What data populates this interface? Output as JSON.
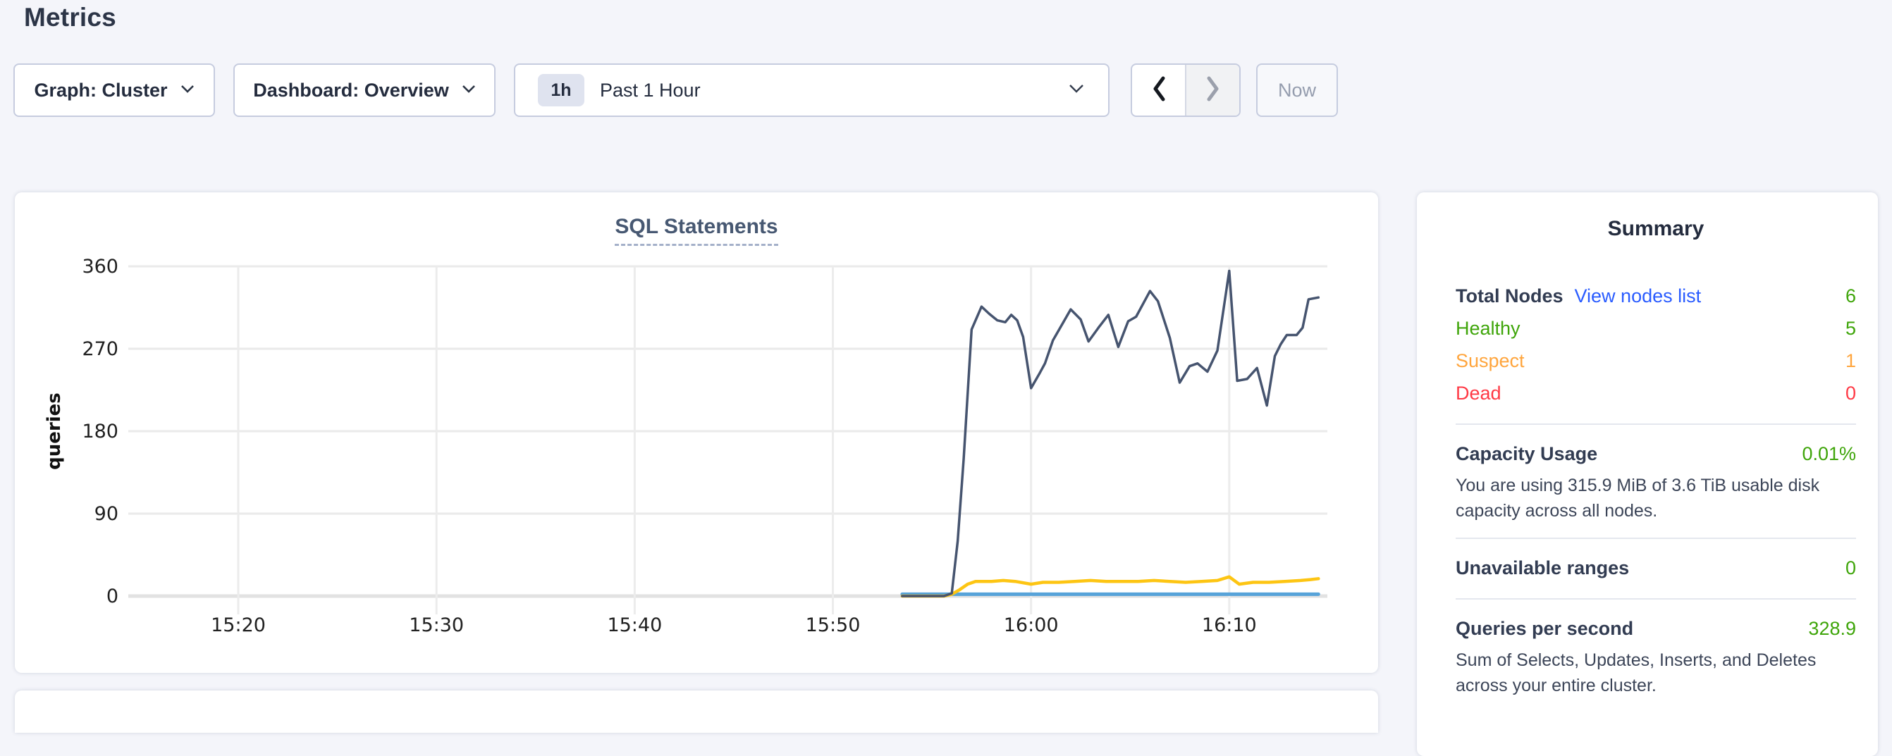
{
  "page": {
    "title": "Metrics"
  },
  "toolbar": {
    "graph_dropdown": {
      "label": "Graph: Cluster"
    },
    "dashboard_dropdown": {
      "label": "Dashboard: Overview"
    },
    "time_picker": {
      "badge": "1h",
      "label": "Past 1 Hour"
    },
    "prev_label": "previous time window",
    "next_label": "next time window",
    "now_button": "Now"
  },
  "chart_data": {
    "type": "line",
    "title": "SQL Statements",
    "ylabel": "queries",
    "xlabel": "",
    "x_unit": "minutes after 15:00",
    "xlim": [
      14.45,
      74.95
    ],
    "ylim": [
      0,
      360
    ],
    "grid": true,
    "legend": "none visible",
    "y_ticks": [
      0,
      90,
      180,
      270,
      360
    ],
    "x_ticks": [
      {
        "t": 20,
        "label": "15:20"
      },
      {
        "t": 30,
        "label": "15:30"
      },
      {
        "t": 40,
        "label": "15:40"
      },
      {
        "t": 50,
        "label": "15:50"
      },
      {
        "t": 60,
        "label": "16:00"
      },
      {
        "t": 70,
        "label": "16:10"
      }
    ],
    "series": [
      {
        "name": "blue",
        "color": "#57a3d9",
        "width": 5,
        "points": [
          [
            53.5,
            2
          ],
          [
            58,
            2
          ],
          [
            62,
            2
          ],
          [
            66,
            2
          ],
          [
            70,
            2
          ],
          [
            74.5,
            2
          ]
        ]
      },
      {
        "name": "yellow",
        "color": "#fdc513",
        "width": 4.5,
        "points": [
          [
            53.5,
            0
          ],
          [
            54.5,
            0
          ],
          [
            55.6,
            0
          ],
          [
            56.0,
            2
          ],
          [
            56.4,
            7
          ],
          [
            56.8,
            13
          ],
          [
            57.2,
            16
          ],
          [
            58.0,
            16
          ],
          [
            58.6,
            17
          ],
          [
            59.2,
            16
          ],
          [
            60.0,
            13
          ],
          [
            60.6,
            15
          ],
          [
            61.4,
            15
          ],
          [
            62.2,
            16
          ],
          [
            63.0,
            17
          ],
          [
            63.8,
            16
          ],
          [
            64.6,
            16
          ],
          [
            65.4,
            16
          ],
          [
            66.2,
            17
          ],
          [
            67.0,
            16
          ],
          [
            67.8,
            15
          ],
          [
            68.6,
            16
          ],
          [
            69.4,
            17
          ],
          [
            70.0,
            21
          ],
          [
            70.5,
            13
          ],
          [
            71.2,
            15
          ],
          [
            72.0,
            15
          ],
          [
            72.8,
            16
          ],
          [
            73.6,
            17
          ],
          [
            74.1,
            18
          ],
          [
            74.5,
            19
          ]
        ]
      },
      {
        "name": "navy",
        "color": "#46546f",
        "width": 3.5,
        "points": [
          [
            53.5,
            0
          ],
          [
            54.5,
            0
          ],
          [
            55.6,
            0
          ],
          [
            56.0,
            3
          ],
          [
            56.3,
            60
          ],
          [
            56.6,
            150
          ],
          [
            57.0,
            291
          ],
          [
            57.5,
            316
          ],
          [
            57.9,
            308
          ],
          [
            58.3,
            301
          ],
          [
            58.7,
            299
          ],
          [
            59.0,
            307
          ],
          [
            59.3,
            301
          ],
          [
            59.6,
            283
          ],
          [
            60.0,
            227
          ],
          [
            60.4,
            242
          ],
          [
            60.7,
            254
          ],
          [
            61.1,
            279
          ],
          [
            61.5,
            294
          ],
          [
            62.0,
            313
          ],
          [
            62.5,
            302
          ],
          [
            62.9,
            278
          ],
          [
            63.4,
            293
          ],
          [
            63.9,
            307
          ],
          [
            64.4,
            272
          ],
          [
            64.9,
            300
          ],
          [
            65.3,
            305
          ],
          [
            66.0,
            333
          ],
          [
            66.4,
            322
          ],
          [
            67.0,
            282
          ],
          [
            67.5,
            233
          ],
          [
            68.0,
            251
          ],
          [
            68.4,
            254
          ],
          [
            68.9,
            245
          ],
          [
            69.4,
            268
          ],
          [
            70.0,
            355
          ],
          [
            70.4,
            235
          ],
          [
            70.9,
            237
          ],
          [
            71.4,
            249
          ],
          [
            71.9,
            208
          ],
          [
            72.3,
            262
          ],
          [
            72.6,
            275
          ],
          [
            72.9,
            285
          ],
          [
            73.4,
            285
          ],
          [
            73.7,
            293
          ],
          [
            74.0,
            324
          ],
          [
            74.5,
            326
          ]
        ]
      }
    ]
  },
  "summary": {
    "title": "Summary",
    "nodes": {
      "label": "Total Nodes",
      "link": "View nodes list",
      "value": "6",
      "statuses": [
        {
          "label": "Healthy",
          "value": "5"
        },
        {
          "label": "Suspect",
          "value": "1"
        },
        {
          "label": "Dead",
          "value": "0"
        }
      ]
    },
    "capacity": {
      "label": "Capacity Usage",
      "value": "0.01%",
      "description": "You are using 315.9 MiB of 3.6 TiB usable disk capacity across all nodes."
    },
    "unavailable": {
      "label": "Unavailable ranges",
      "value": "0"
    },
    "qps": {
      "label": "Queries per second",
      "value": "328.9",
      "description": "Sum of Selects, Updates, Inserts, and Deletes across your entire cluster."
    }
  },
  "colors": {
    "healthy_green": "#3fa50a",
    "suspect_orange": "#ffa53d",
    "dead_red": "#ff3945",
    "link_blue": "#2a5cff",
    "navy_series": "#46546f",
    "yellow_series": "#fdc513",
    "blue_series": "#57a3d9",
    "title_slate": "#475872",
    "page_background": "#f4f5fa"
  }
}
